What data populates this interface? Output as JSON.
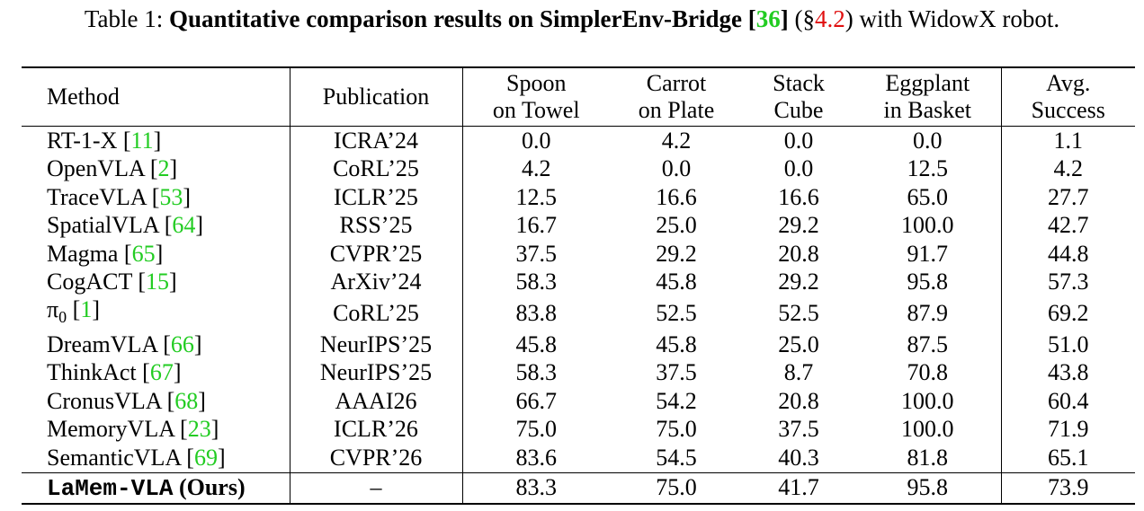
{
  "caption": {
    "prefix": "Table 1: ",
    "bold_text": "Quantitative comparison results on SimplerEnv-Bridge [",
    "ref": "36",
    "bold_close": "]",
    "section_open": " (§",
    "section_ref": "4.2",
    "section_close": ") with WidowX robot."
  },
  "headers": {
    "method": "Method",
    "publication": "Publication",
    "spoon_line1": "Spoon",
    "spoon_line2": "on Towel",
    "carrot_line1": "Carrot",
    "carrot_line2": "on Plate",
    "stack_line1": "Stack",
    "stack_line2": "Cube",
    "eggplant_line1": "Eggplant",
    "eggplant_line2": "in Basket",
    "avg_line1": "Avg.",
    "avg_line2": "Success"
  },
  "rows": [
    {
      "name": "RT-1-X",
      "ref": "11",
      "pub": "ICRA’24",
      "spoon": "0.0",
      "carrot": "4.2",
      "stack": "0.0",
      "eggplant": "0.0",
      "avg": "1.1"
    },
    {
      "name": "OpenVLA",
      "ref": "2",
      "pub": "CoRL’25",
      "spoon": "4.2",
      "carrot": "0.0",
      "stack": "0.0",
      "eggplant": "12.5",
      "avg": "4.2"
    },
    {
      "name": "TraceVLA",
      "ref": "53",
      "pub": "ICLR’25",
      "spoon": "12.5",
      "carrot": "16.6",
      "stack": "16.6",
      "eggplant": "65.0",
      "avg": "27.7"
    },
    {
      "name": "SpatialVLA",
      "ref": "64",
      "pub": "RSS’25",
      "spoon": "16.7",
      "carrot": "25.0",
      "stack": "29.2",
      "eggplant": "100.0",
      "avg": "42.7"
    },
    {
      "name": "Magma",
      "ref": "65",
      "pub": "CVPR’25",
      "spoon": "37.5",
      "carrot": "29.2",
      "stack": "20.8",
      "eggplant": "91.7",
      "avg": "44.8"
    },
    {
      "name": "CogACT",
      "ref": "15",
      "pub": "ArXiv’24",
      "spoon": "58.3",
      "carrot": "45.8",
      "stack": "29.2",
      "eggplant": "95.8",
      "avg": "57.3"
    },
    {
      "name": "π",
      "sub": "0",
      "ref": "1",
      "pub": "CoRL’25",
      "spoon": "83.8",
      "carrot": "52.5",
      "stack": "52.5",
      "eggplant": "87.9",
      "avg": "69.2"
    },
    {
      "name": "DreamVLA",
      "ref": "66",
      "pub": "NeurIPS’25",
      "spoon": "45.8",
      "carrot": "45.8",
      "stack": "25.0",
      "eggplant": "87.5",
      "avg": "51.0"
    },
    {
      "name": "ThinkAct",
      "ref": "67",
      "pub": "NeurIPS’25",
      "spoon": "58.3",
      "carrot": "37.5",
      "stack": "8.7",
      "eggplant": "70.8",
      "avg": "43.8"
    },
    {
      "name": "CronusVLA",
      "ref": "68",
      "pub": "AAAI26",
      "spoon": "66.7",
      "carrot": "54.2",
      "stack": "20.8",
      "eggplant": "100.0",
      "avg": "60.4"
    },
    {
      "name": "MemoryVLA",
      "ref": "23",
      "pub": "ICLR’26",
      "spoon": "75.0",
      "carrot": "75.0",
      "stack": "37.5",
      "eggplant": "100.0",
      "avg": "71.9"
    },
    {
      "name": "SemanticVLA",
      "ref": "69",
      "pub": "CVPR’26",
      "spoon": "83.6",
      "carrot": "54.5",
      "stack": "40.3",
      "eggplant": "81.8",
      "avg": "65.1"
    }
  ],
  "ours": {
    "name_mono": "LaMem-VLA",
    "name_suffix": " (Ours)",
    "pub": "–",
    "spoon": "83.3",
    "carrot": "75.0",
    "stack": "41.7",
    "eggplant": "95.8",
    "avg": "73.9"
  },
  "colors": {
    "ref_link": "#22cc22",
    "section_link": "#e01010"
  }
}
